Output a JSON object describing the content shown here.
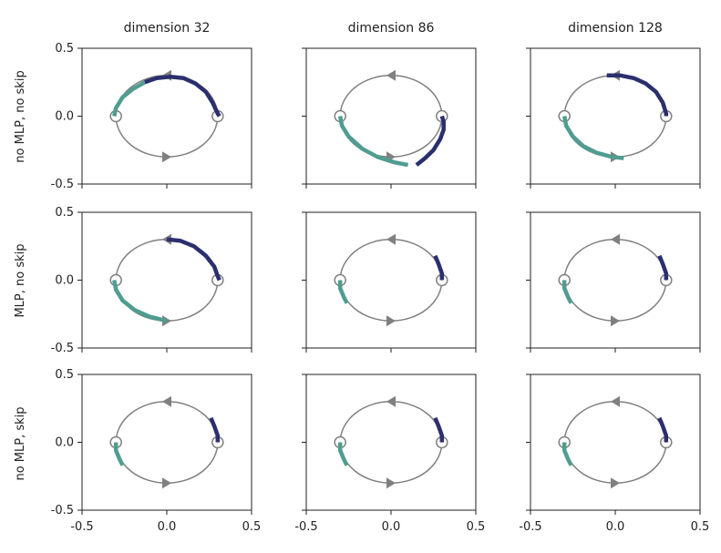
{
  "colors": {
    "circle": "#808080",
    "teal": "#4f9d90",
    "navy": "#2b2f6e",
    "frame": "#222222"
  },
  "col_titles": [
    "dimension 32",
    "dimension 86",
    "dimension 128"
  ],
  "row_labels": [
    "no MLP, no skip",
    "MLP, no skip",
    "no MLP, skip"
  ],
  "chart_data": {
    "type": "line",
    "grid": false,
    "xlim": [
      -0.5,
      0.5
    ],
    "ylim": [
      -0.5,
      0.5
    ],
    "xticks": [
      -0.5,
      0.0,
      0.5
    ],
    "yticks": [
      -0.5,
      0.0,
      0.5
    ],
    "xtick_labels": [
      "-0.5",
      "0.0",
      "0.5"
    ],
    "ytick_labels": [
      "-0.5",
      "0.0",
      "0.5"
    ],
    "reference_circle": {
      "cx": 0.0,
      "cy": 0.0,
      "rx": 0.3,
      "ry": 0.3,
      "fixed_points": [
        [
          -0.3,
          0.0
        ],
        [
          0.3,
          0.0
        ]
      ],
      "arrows": [
        [
          0.0,
          0.3,
          "left"
        ],
        [
          0.0,
          -0.3,
          "right"
        ]
      ]
    },
    "panels": [
      {
        "row": 0,
        "col": 0,
        "teal": [
          [
            -0.31,
            0.0
          ],
          [
            -0.3,
            0.06
          ],
          [
            -0.26,
            0.14
          ],
          [
            -0.2,
            0.2
          ],
          [
            -0.13,
            0.25
          ]
        ],
        "navy": [
          [
            -0.13,
            0.25
          ],
          [
            -0.06,
            0.28
          ],
          [
            0.02,
            0.29
          ],
          [
            0.1,
            0.28
          ],
          [
            0.17,
            0.24
          ],
          [
            0.23,
            0.18
          ],
          [
            0.27,
            0.1
          ],
          [
            0.3,
            0.02
          ],
          [
            0.31,
            0.0
          ]
        ]
      },
      {
        "row": 0,
        "col": 1,
        "teal": [
          [
            -0.3,
            0.0
          ],
          [
            -0.29,
            -0.07
          ],
          [
            -0.25,
            -0.15
          ],
          [
            -0.17,
            -0.24
          ],
          [
            -0.08,
            -0.3
          ],
          [
            0.02,
            -0.34
          ],
          [
            0.1,
            -0.36
          ]
        ],
        "navy": [
          [
            0.3,
            0.0
          ],
          [
            0.31,
            -0.04
          ],
          [
            0.31,
            -0.1
          ],
          [
            0.29,
            -0.17
          ],
          [
            0.25,
            -0.25
          ],
          [
            0.2,
            -0.31
          ],
          [
            0.15,
            -0.36
          ]
        ]
      },
      {
        "row": 0,
        "col": 2,
        "teal": [
          [
            -0.3,
            0.0
          ],
          [
            -0.29,
            -0.07
          ],
          [
            -0.25,
            -0.15
          ],
          [
            -0.19,
            -0.22
          ],
          [
            -0.11,
            -0.27
          ],
          [
            -0.02,
            -0.3
          ],
          [
            0.05,
            -0.31
          ]
        ],
        "navy": [
          [
            -0.05,
            0.3
          ],
          [
            0.03,
            0.3
          ],
          [
            0.11,
            0.28
          ],
          [
            0.18,
            0.24
          ],
          [
            0.24,
            0.18
          ],
          [
            0.28,
            0.1
          ],
          [
            0.3,
            0.02
          ],
          [
            0.3,
            0.0
          ]
        ]
      },
      {
        "row": 1,
        "col": 0,
        "teal": [
          [
            -0.31,
            0.0
          ],
          [
            -0.3,
            -0.07
          ],
          [
            -0.26,
            -0.15
          ],
          [
            -0.19,
            -0.22
          ],
          [
            -0.1,
            -0.27
          ],
          [
            0.0,
            -0.3
          ]
        ],
        "navy": [
          [
            0.0,
            0.3
          ],
          [
            0.08,
            0.29
          ],
          [
            0.16,
            0.25
          ],
          [
            0.23,
            0.18
          ],
          [
            0.28,
            0.1
          ],
          [
            0.3,
            0.03
          ],
          [
            0.31,
            0.0
          ]
        ]
      },
      {
        "row": 1,
        "col": 1,
        "teal": [
          [
            -0.3,
            0.0
          ],
          [
            -0.3,
            -0.06
          ],
          [
            -0.28,
            -0.12
          ],
          [
            -0.26,
            -0.17
          ]
        ],
        "navy": [
          [
            0.3,
            0.0
          ],
          [
            0.3,
            0.05
          ],
          [
            0.28,
            0.12
          ],
          [
            0.26,
            0.18
          ]
        ]
      },
      {
        "row": 1,
        "col": 2,
        "teal": [
          [
            -0.3,
            0.0
          ],
          [
            -0.3,
            -0.06
          ],
          [
            -0.28,
            -0.12
          ],
          [
            -0.26,
            -0.17
          ]
        ],
        "navy": [
          [
            0.3,
            0.0
          ],
          [
            0.3,
            0.05
          ],
          [
            0.28,
            0.12
          ],
          [
            0.26,
            0.18
          ]
        ]
      },
      {
        "row": 2,
        "col": 0,
        "teal": [
          [
            -0.3,
            0.0
          ],
          [
            -0.3,
            -0.06
          ],
          [
            -0.28,
            -0.12
          ],
          [
            -0.26,
            -0.17
          ]
        ],
        "navy": [
          [
            0.3,
            0.0
          ],
          [
            0.3,
            0.05
          ],
          [
            0.28,
            0.12
          ],
          [
            0.26,
            0.18
          ]
        ]
      },
      {
        "row": 2,
        "col": 1,
        "teal": [
          [
            -0.3,
            0.0
          ],
          [
            -0.3,
            -0.06
          ],
          [
            -0.28,
            -0.12
          ],
          [
            -0.26,
            -0.17
          ]
        ],
        "navy": [
          [
            0.3,
            0.0
          ],
          [
            0.3,
            0.05
          ],
          [
            0.28,
            0.12
          ],
          [
            0.26,
            0.18
          ]
        ]
      },
      {
        "row": 2,
        "col": 2,
        "teal": [
          [
            -0.3,
            0.0
          ],
          [
            -0.3,
            -0.06
          ],
          [
            -0.28,
            -0.12
          ],
          [
            -0.26,
            -0.17
          ]
        ],
        "navy": [
          [
            0.3,
            0.0
          ],
          [
            0.3,
            0.05
          ],
          [
            0.28,
            0.12
          ],
          [
            0.26,
            0.18
          ]
        ]
      }
    ]
  }
}
